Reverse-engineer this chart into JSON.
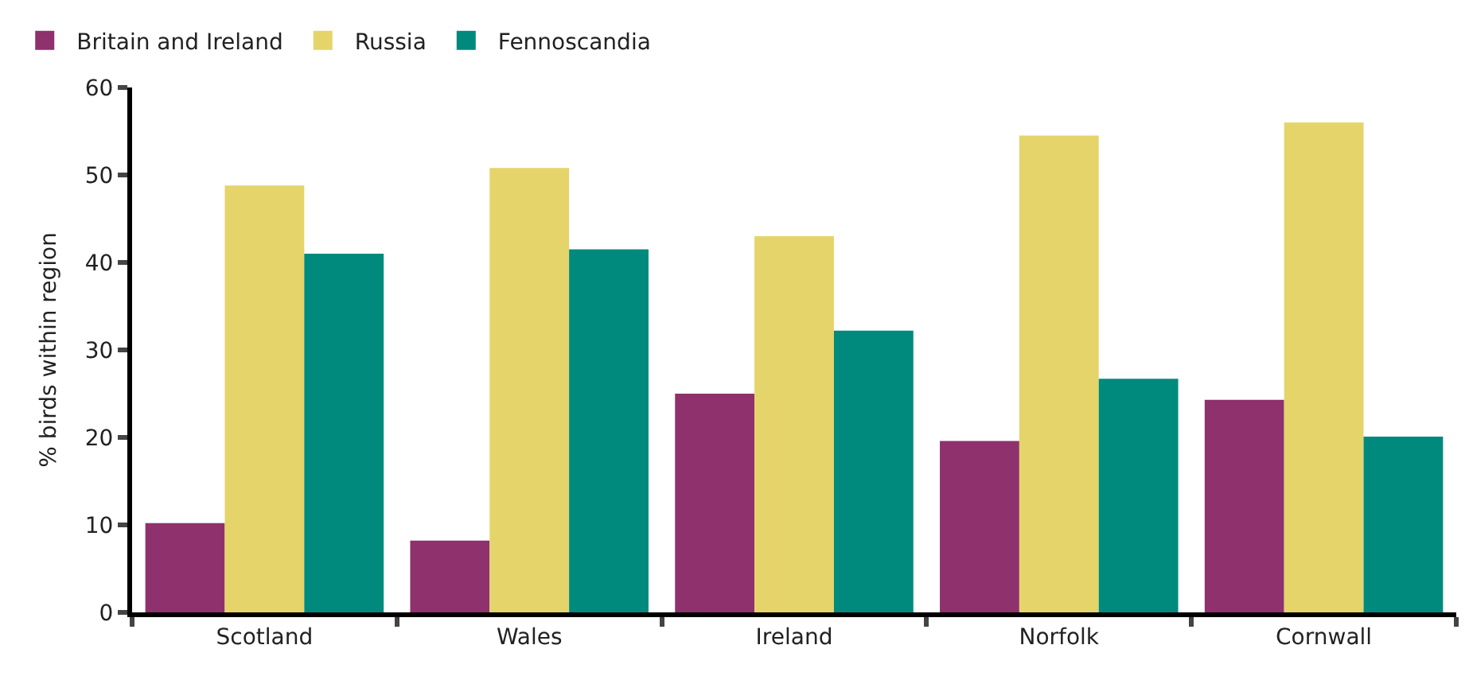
{
  "chart_data": {
    "type": "bar",
    "ylabel": "% birds within region",
    "categories": [
      "Scotland",
      "Wales",
      "Ireland",
      "Norfolk",
      "Cornwall"
    ],
    "series": [
      {
        "name": "Britain and Ireland",
        "color": "#8e316c",
        "values": [
          10.2,
          8.2,
          25,
          19.6,
          24.3
        ]
      },
      {
        "name": "Russia",
        "color": "#e5d46a",
        "values": [
          48.8,
          50.8,
          43,
          54.5,
          56
        ]
      },
      {
        "name": "Fennoscandia",
        "color": "#008a7d",
        "values": [
          41,
          41.5,
          32.2,
          26.7,
          20.1
        ]
      }
    ],
    "ylim": [
      0,
      60
    ],
    "yticks": [
      0,
      10,
      20,
      30,
      40,
      50,
      60
    ],
    "legend": "top left"
  }
}
